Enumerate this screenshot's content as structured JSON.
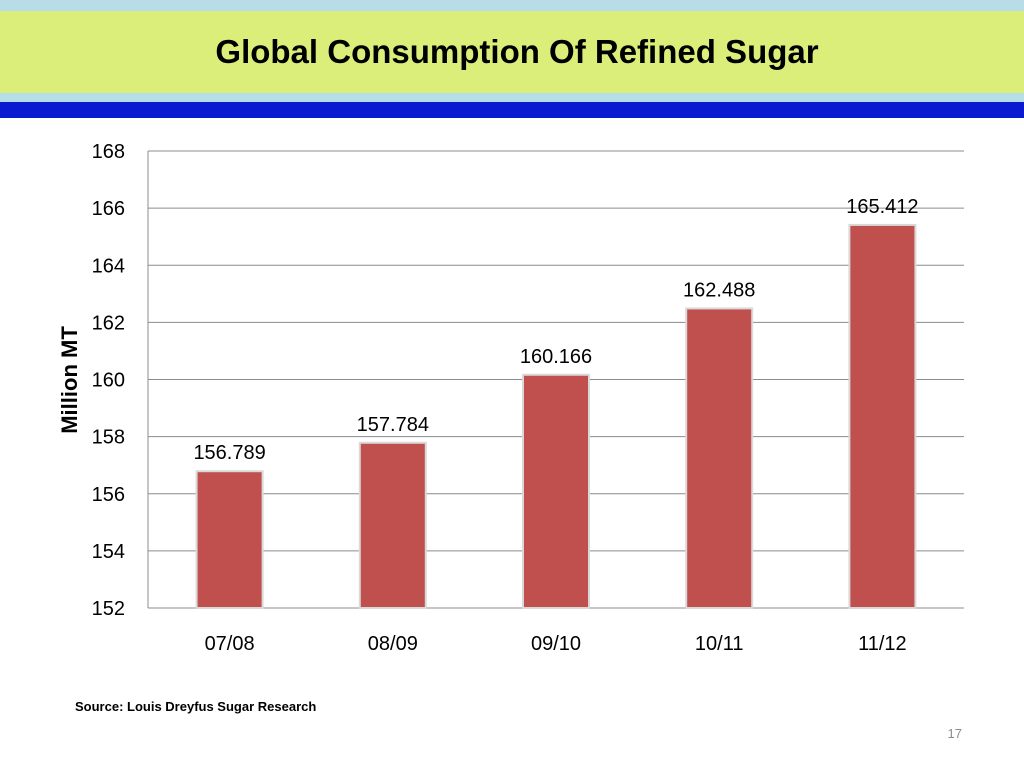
{
  "slide": {
    "title": "Global Consumption Of Refined Sugar",
    "source": "Source: Louis Dreyfus Sugar Research",
    "page_number": "17"
  },
  "colors": {
    "title_band": "#dcee7a",
    "accent_blue": "#0a1ad0",
    "light_band": "#b7dde8",
    "bar": "#c0504d"
  },
  "chart_data": {
    "type": "bar",
    "title": "",
    "xlabel": "",
    "ylabel": "Million MT",
    "categories": [
      "07/08",
      "08/09",
      "09/10",
      "10/11",
      "11/12"
    ],
    "values": [
      156.789,
      157.784,
      160.166,
      162.488,
      165.412
    ],
    "data_labels": [
      "156.789",
      "157.784",
      "160.166",
      "162.488",
      "165.412"
    ],
    "ylim": [
      152,
      168
    ],
    "yticks": [
      152,
      154,
      156,
      158,
      160,
      162,
      164,
      166,
      168
    ],
    "grid": true,
    "legend": "none"
  }
}
